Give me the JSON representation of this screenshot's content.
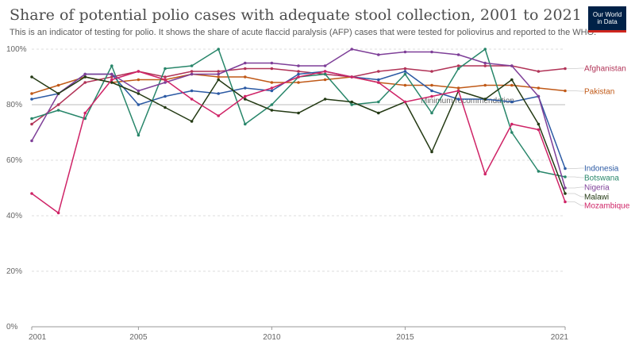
{
  "header": {
    "title": "Share of potential polio cases with adequate stool collection, 2001 to 2021",
    "subtitle": "This is an indicator of testing for polio. It shows the share of acute flaccid paralysis (AFP) cases that were tested for poliovirus and reported to the WHO.",
    "logo_line1": "Our World",
    "logo_line2": "in Data"
  },
  "chart_data": {
    "type": "line",
    "title": "Share of potential polio cases with adequate stool collection, 2001 to 2021",
    "x_ticks": [
      "2001",
      "2005",
      "2010",
      "2015",
      "2021"
    ],
    "y_ticks": [
      "0%",
      "20%",
      "40%",
      "60%",
      "80%",
      "100%"
    ],
    "xlim": [
      2001,
      2021
    ],
    "ylim": [
      0,
      100
    ],
    "grid": "horizontal dashed",
    "reference_line": {
      "value": 80,
      "label": "Minimum recommendation"
    },
    "x": [
      2001,
      2002,
      2003,
      2004,
      2005,
      2006,
      2007,
      2008,
      2009,
      2010,
      2011,
      2012,
      2013,
      2014,
      2015,
      2016,
      2017,
      2018,
      2019,
      2020,
      2021
    ],
    "series": [
      {
        "name": "Afghanistan",
        "color": "#b13357",
        "values": [
          73,
          80,
          88,
          90,
          92,
          90,
          92,
          92,
          93,
          93,
          92,
          91,
          90,
          92,
          93,
          92,
          94,
          94,
          94,
          92,
          93
        ]
      },
      {
        "name": "Pakistan",
        "color": "#c05917",
        "values": [
          84,
          87,
          90,
          88,
          89,
          89,
          91,
          90,
          90,
          88,
          88,
          89,
          90,
          88,
          87,
          87,
          86,
          87,
          87,
          86,
          85
        ]
      },
      {
        "name": "Indonesia",
        "color": "#2c5aa4",
        "values": [
          82,
          84,
          91,
          91,
          80,
          83,
          85,
          84,
          86,
          85,
          91,
          92,
          90,
          89,
          92,
          85,
          82,
          82,
          81,
          83,
          57
        ]
      },
      {
        "name": "Botswana",
        "color": "#28866a",
        "values": [
          75,
          78,
          75,
          94,
          69,
          93,
          94,
          100,
          73,
          80,
          90,
          91,
          80,
          81,
          91,
          77,
          93,
          100,
          70,
          56,
          54
        ]
      },
      {
        "name": "Nigeria",
        "color": "#7e3f98",
        "values": [
          67,
          84,
          91,
          91,
          85,
          88,
          91,
          91,
          95,
          95,
          94,
          94,
          100,
          98,
          99,
          99,
          98,
          95,
          94,
          83,
          50
        ]
      },
      {
        "name": "Malawi",
        "color": "#243a14",
        "values": [
          90,
          84,
          90,
          88,
          84,
          79,
          74,
          89,
          82,
          78,
          77,
          82,
          81,
          77,
          81,
          63,
          85,
          82,
          89,
          73,
          48
        ]
      },
      {
        "name": "Mozambique",
        "color": "#cf2467",
        "values": [
          48,
          41,
          77,
          89,
          92,
          89,
          82,
          76,
          83,
          86,
          90,
          92,
          90,
          88,
          81,
          83,
          85,
          55,
          73,
          71,
          45
        ]
      }
    ]
  }
}
